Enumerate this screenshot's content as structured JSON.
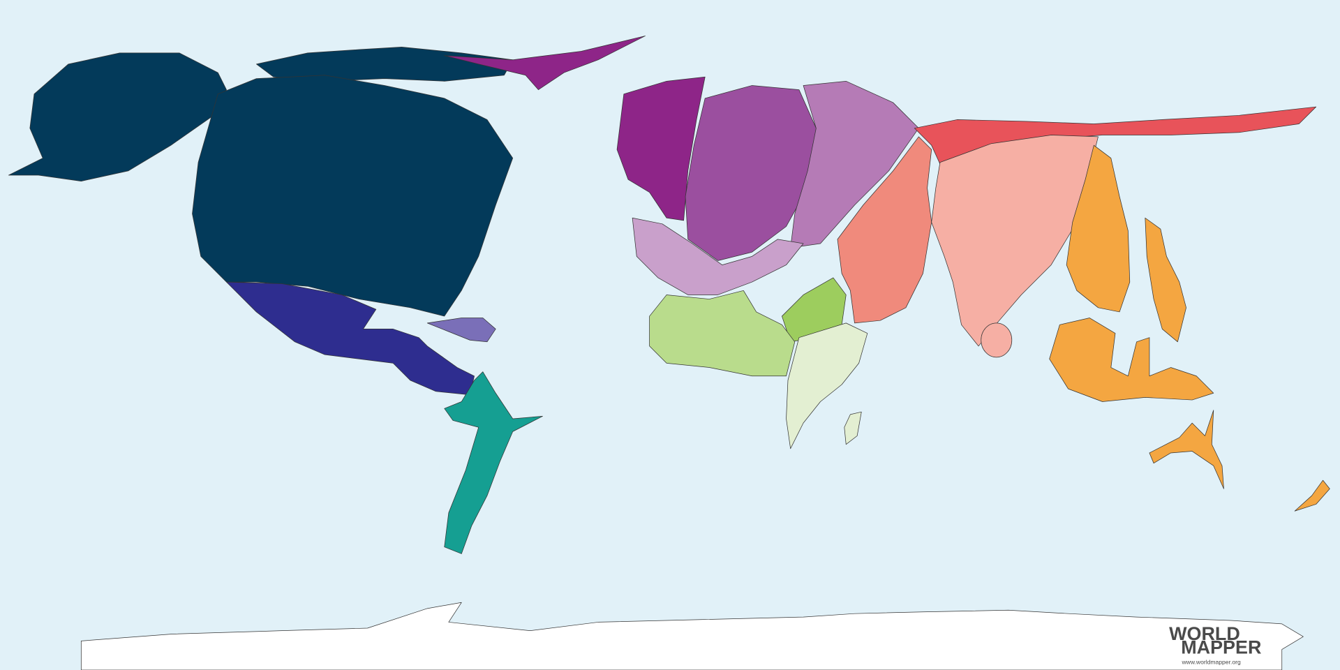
{
  "logo": {
    "line1": "WORLD",
    "line2": "MAPPER",
    "url": "www.worldmapper.org"
  }
}
